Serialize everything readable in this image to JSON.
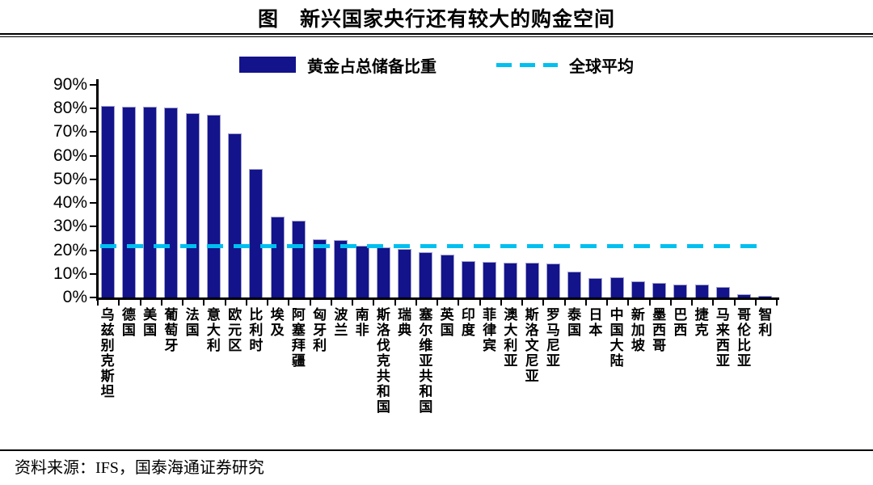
{
  "title": "图　新兴国家央行还有较大的购金空间",
  "source": "资料来源：IFS，国泰海通证券研究",
  "colors": {
    "bar": "#13138B",
    "bar_border": "#A3A3D0",
    "average_line": "#00C0F0",
    "axis": "#000000",
    "background": "#FFFFFF"
  },
  "chart_data": {
    "type": "bar",
    "title": "图　新兴国家央行还有较大的购金空间",
    "series_name": "黄金占总储备比重",
    "categories": [
      "乌兹别克斯坦",
      "德国",
      "美国",
      "葡萄牙",
      "法国",
      "意大利",
      "欧元区",
      "比利时",
      "埃及",
      "阿塞拜疆",
      "匈牙利",
      "波兰",
      "南非",
      "斯洛伐克共和国",
      "瑞典",
      "塞尔维亚共和国",
      "英国",
      "印度",
      "菲律宾",
      "澳大利亚",
      "斯洛文尼亚",
      "罗马尼亚",
      "泰国",
      "日本",
      "中国大陆",
      "新加坡",
      "墨西哥",
      "巴西",
      "捷克",
      "马来西亚",
      "哥伦比亚",
      "智利"
    ],
    "values": [
      81,
      80.8,
      80.8,
      80.3,
      78,
      77.3,
      69.5,
      54.3,
      34.3,
      32.5,
      24.5,
      24.2,
      22,
      21.2,
      20.7,
      19,
      18.2,
      15.3,
      15.1,
      14.8,
      14.6,
      14.4,
      10.8,
      8.2,
      8.5,
      6.7,
      6.2,
      5.6,
      5.4,
      4.5,
      1.5,
      0.8
    ],
    "average_line": {
      "label": "全球平均",
      "value": 21.5
    },
    "xlabel": "",
    "ylabel": "",
    "ylim": [
      0,
      90
    ],
    "ytick_step": 10,
    "ytick_labels": [
      "0%",
      "10%",
      "20%",
      "30%",
      "40%",
      "50%",
      "60%",
      "70%",
      "80%",
      "90%"
    ],
    "grid": false,
    "legend_position": "top-center"
  }
}
